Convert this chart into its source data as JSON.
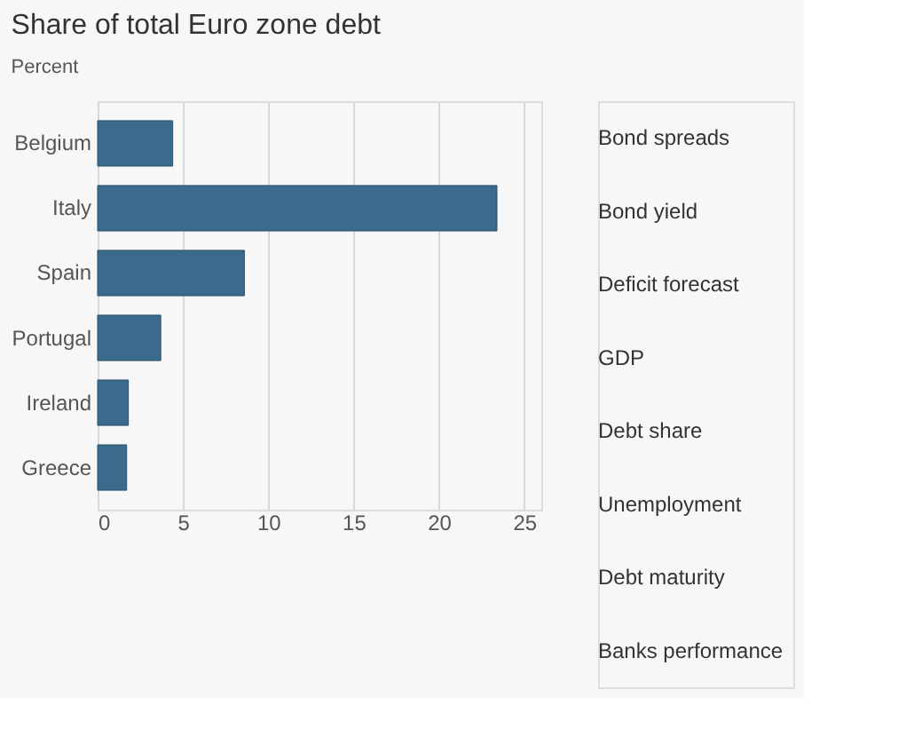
{
  "chart_data": {
    "type": "bar",
    "orientation": "horizontal",
    "title": "Share of total Euro zone debt",
    "subtitle": "Percent",
    "categories": [
      "Belgium",
      "Italy",
      "Spain",
      "Portugal",
      "Ireland",
      "Greece"
    ],
    "values": [
      4.4,
      23.4,
      8.6,
      3.7,
      1.8,
      1.7
    ],
    "color": "#3a6a8c",
    "xlim": [
      0,
      26
    ],
    "xticks": [
      0,
      5,
      10,
      15,
      20,
      25
    ],
    "grid": "x",
    "annotations": [
      "Bond spreads",
      "Bond yield",
      "Deficit forecast",
      "GDP",
      "Debt share",
      "Unemployment",
      "Debt maturity",
      "Banks performance"
    ]
  }
}
